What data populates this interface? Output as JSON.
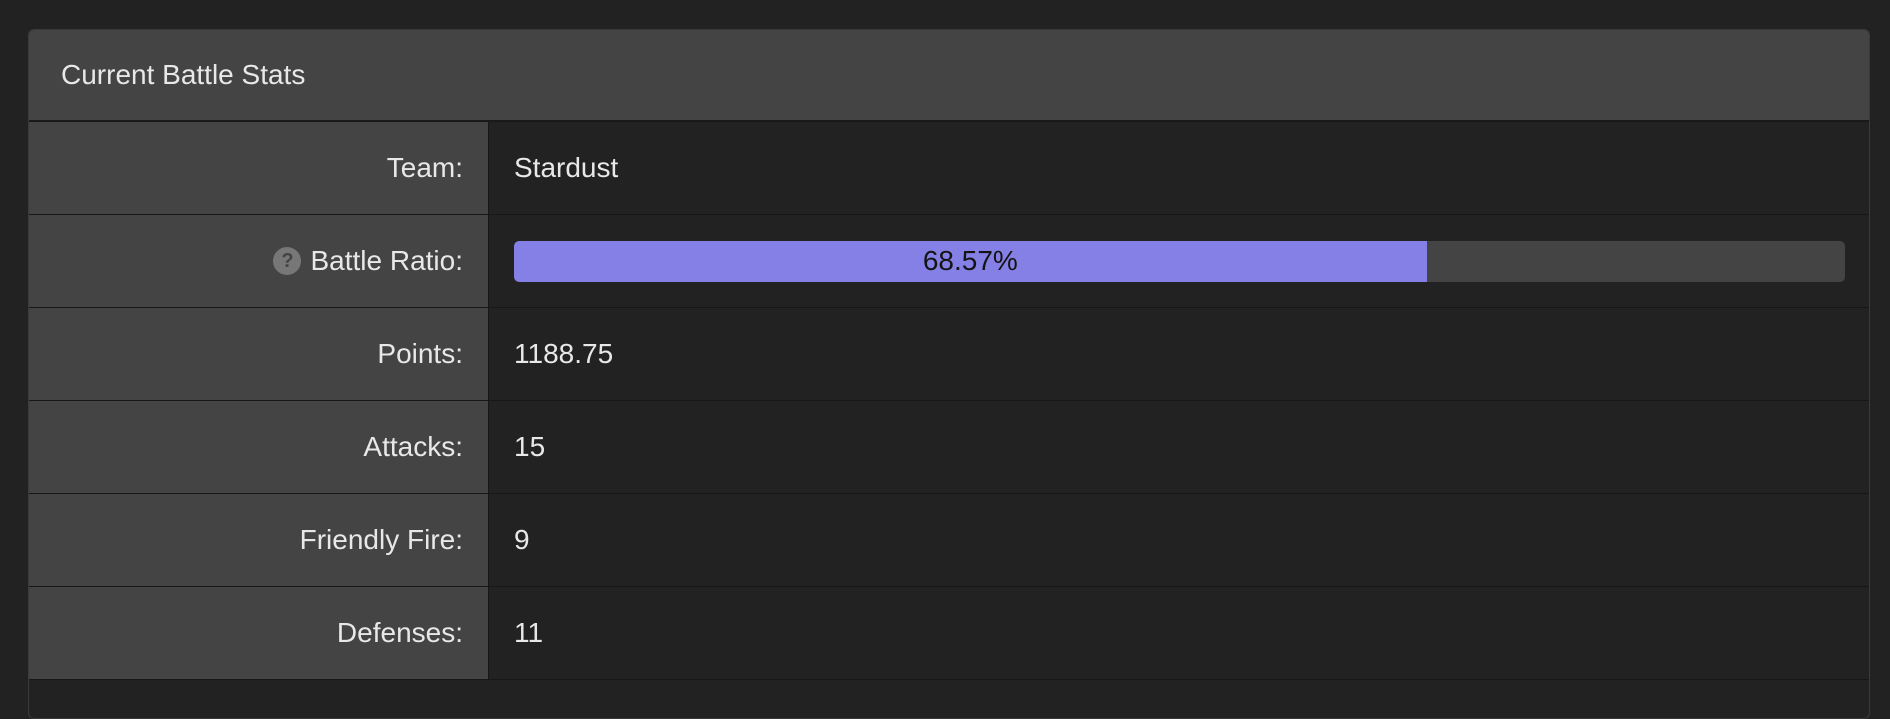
{
  "panel": {
    "title": "Current Battle Stats"
  },
  "stats": {
    "team": {
      "label": "Team:",
      "value": "Stardust"
    },
    "battle_ratio": {
      "label": "Battle Ratio:",
      "help_icon": "question-circle-icon",
      "help_glyph": "?",
      "value_text": "68.57%",
      "percent": 68.57,
      "fill_color": "#8580e6"
    },
    "points": {
      "label": "Points:",
      "value": "1188.75"
    },
    "attacks": {
      "label": "Attacks:",
      "value": "15"
    },
    "friendly_fire": {
      "label": "Friendly Fire:",
      "value": "9"
    },
    "defenses": {
      "label": "Defenses:",
      "value": "11"
    }
  }
}
